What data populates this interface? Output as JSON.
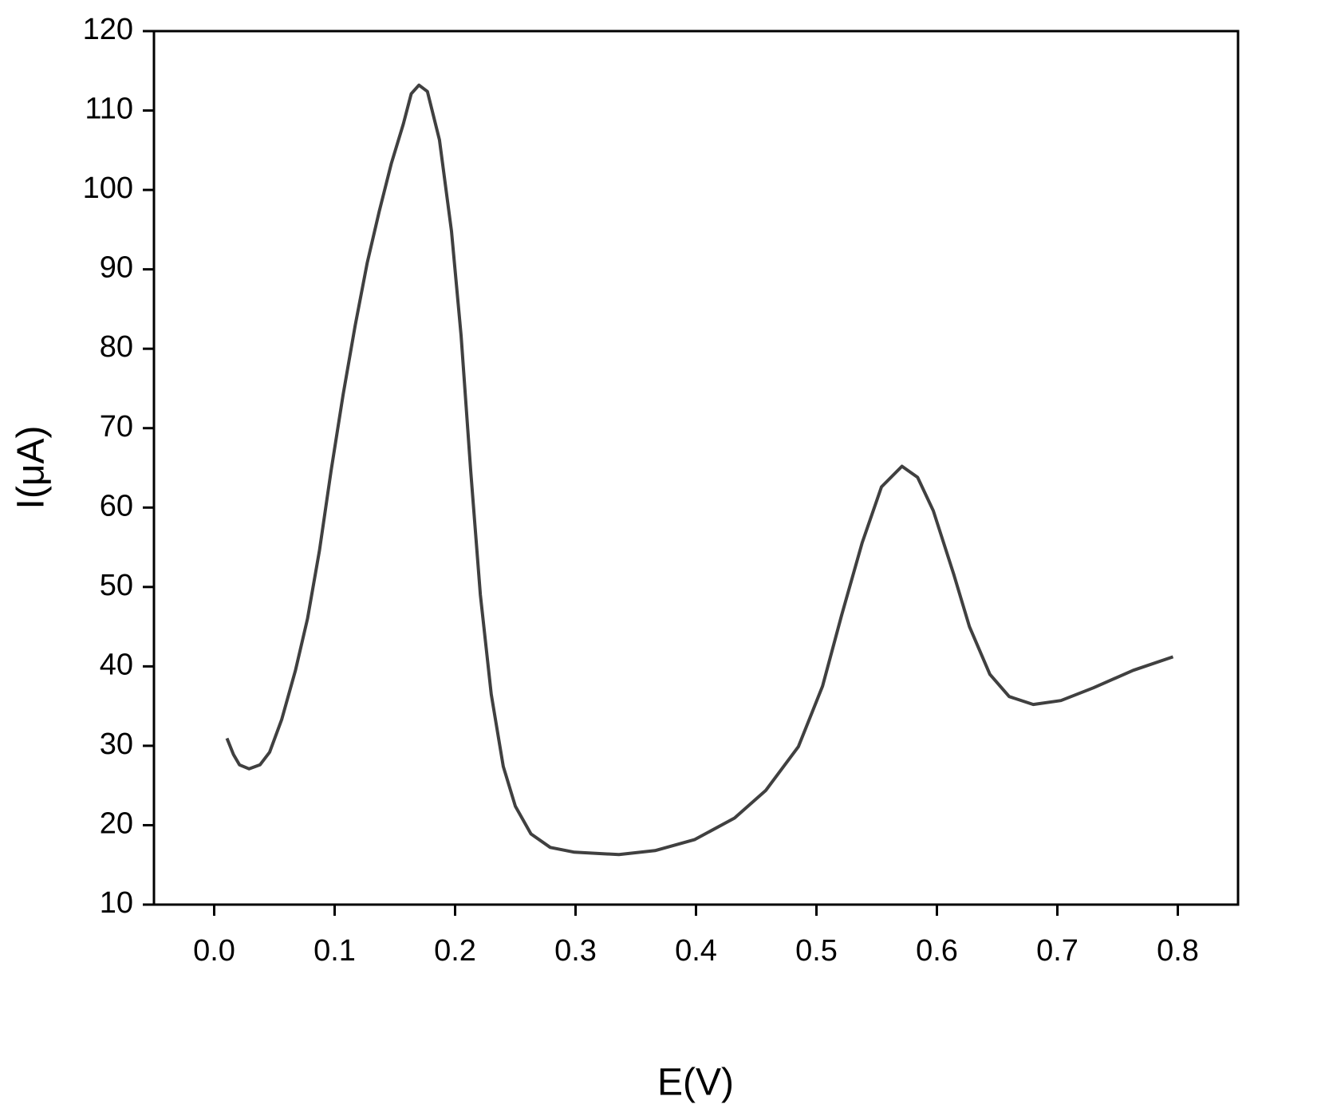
{
  "chart_data": {
    "type": "line",
    "x_label": "E(V)",
    "y_label": "I(μA)",
    "xlim": [
      -0.05,
      0.85
    ],
    "ylim": [
      10,
      120
    ],
    "xticks": [
      {
        "value": 0,
        "label": "0.0"
      },
      0.1,
      0.2,
      0.3,
      0.4,
      0.5,
      0.6,
      0.7,
      0.8
    ],
    "yticks": [
      10,
      20,
      30,
      40,
      50,
      60,
      70,
      80,
      90,
      100,
      110,
      120
    ],
    "series": [
      {
        "color": "#404040",
        "x": [
          0.0106,
          0.016,
          0.021,
          0.029,
          0.038,
          0.046,
          0.056,
          0.0675,
          0.0775,
          0.0874,
          0.097,
          0.107,
          0.117,
          0.127,
          0.137,
          0.147,
          0.157,
          0.1636,
          0.17,
          0.177,
          0.187,
          0.197,
          0.205,
          0.213,
          0.221,
          0.23,
          0.24,
          0.25,
          0.263,
          0.279,
          0.299,
          0.336,
          0.366,
          0.399,
          0.432,
          0.458,
          0.485,
          0.505,
          0.521,
          0.538,
          0.554,
          0.571,
          0.584,
          0.597,
          0.614,
          0.627,
          0.644,
          0.66,
          0.68,
          0.703,
          0.73,
          0.763,
          0.796
        ],
        "values": [
          30.95,
          28.9,
          27.6,
          27.1,
          27.6,
          29.2,
          33.3,
          39.5,
          46,
          54.6,
          64.6,
          74.2,
          82.9,
          90.8,
          97.3,
          103.3,
          108.3,
          112.1,
          113.2,
          112.4,
          106.3,
          94.8,
          81.7,
          64.6,
          49,
          36.5,
          27.4,
          22.4,
          18.9,
          17.2,
          16.6,
          16.3,
          16.8,
          18.2,
          20.9,
          24.4,
          29.9,
          37.5,
          46.5,
          55.6,
          62.6,
          65.2,
          63.8,
          59.6,
          51.6,
          45.0,
          39.0,
          36.2,
          35.2,
          35.7,
          37.3,
          39.5,
          41.2
        ]
      }
    ]
  }
}
